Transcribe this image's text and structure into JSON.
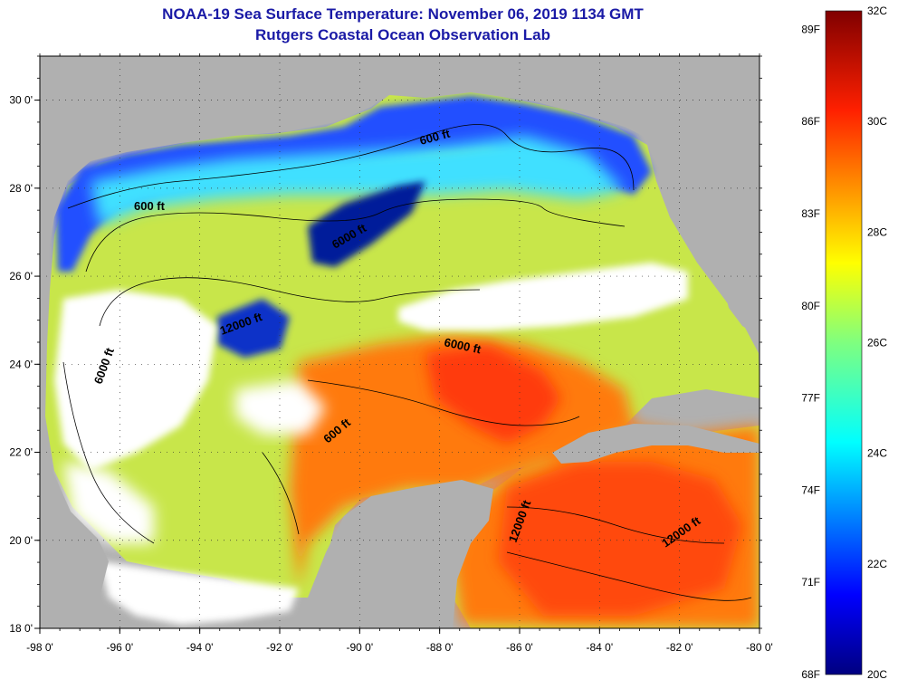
{
  "title": "NOAA-19 Sea Surface Temperature:  November 06, 2019 1134 GMT",
  "subtitle": "Rutgers Coastal Ocean Observation Lab",
  "map": {
    "lat_range": [
      18,
      31
    ],
    "lon_range": [
      -98,
      -80
    ],
    "lon_ticks": [
      "-98 0'",
      "-96 0'",
      "-94 0'",
      "-92 0'",
      "-90 0'",
      "-88 0'",
      "-86 0'",
      "-84 0'",
      "-82 0'",
      "-80 0'"
    ],
    "lat_ticks": [
      "18 0'",
      "20 0'",
      "22 0'",
      "24 0'",
      "26 0'",
      "28 0'",
      "30 0'"
    ],
    "contour_labels": [
      "600 ft",
      "600 ft",
      "6000 ft",
      "12000 ft",
      "6000 ft",
      "6000 ft",
      "600 ft",
      "12000 ft",
      "12000 ft"
    ],
    "land_color": "#b0b0b0",
    "cloud_color": "#ffffff"
  },
  "colorbar": {
    "fahrenheit_labels": [
      "89F",
      "86F",
      "83F",
      "80F",
      "77F",
      "74F",
      "71F",
      "68F"
    ],
    "celsius_labels": [
      "32C",
      "30C",
      "28C",
      "26C",
      "24C",
      "22C",
      "20C"
    ],
    "range_c": [
      20,
      32
    ],
    "colormap": "jet"
  }
}
